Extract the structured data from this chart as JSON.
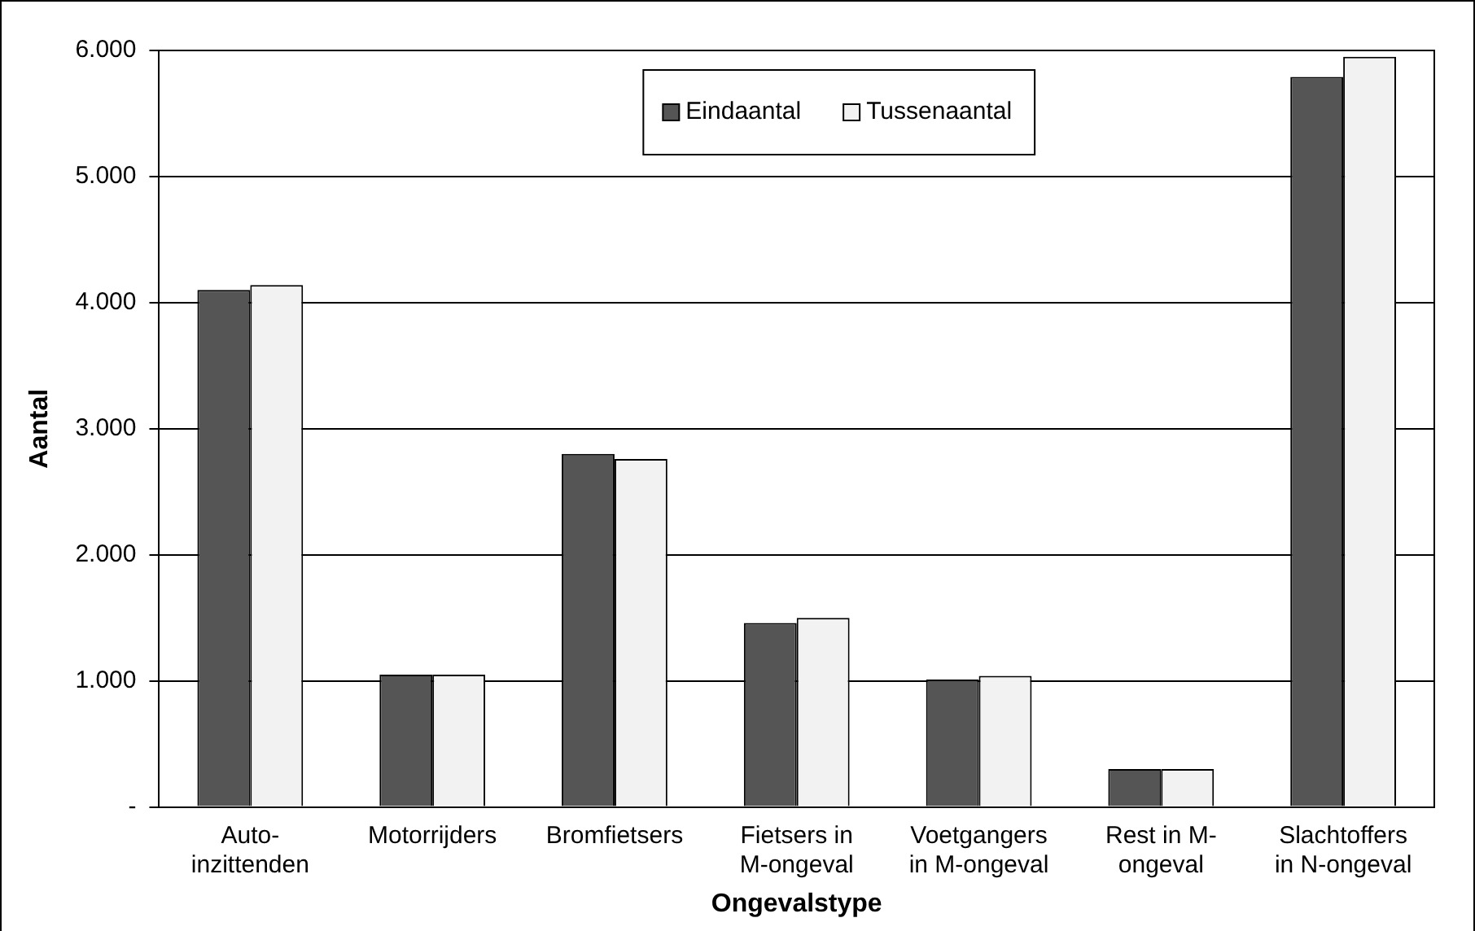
{
  "chart_data": {
    "type": "bar",
    "xlabel": "Ongevalstype",
    "ylabel": "Aantal",
    "categories": [
      "Auto-\ninzittenden",
      "Motorrijders",
      "Bromfietsers",
      "Fietsers in\nM-ongeval",
      "Voetgangers\nin M-ongeval",
      "Rest in M-\nongeval",
      "Slachtoffers\nin N-ongeval"
    ],
    "series": [
      {
        "name": "Eindaantal",
        "color": "#555555",
        "values": [
          4100,
          1050,
          2800,
          1460,
          1010,
          300,
          5790
        ]
      },
      {
        "name": "Tussenaantal",
        "color": "#f2f2f2",
        "values": [
          4140,
          1050,
          2760,
          1500,
          1040,
          300,
          5950
        ]
      }
    ],
    "ylim": [
      0,
      6000
    ],
    "yticks": [
      {
        "value": 0,
        "label": "-"
      },
      {
        "value": 1000,
        "label": "1.000"
      },
      {
        "value": 2000,
        "label": "2.000"
      },
      {
        "value": 3000,
        "label": "3.000"
      },
      {
        "value": 4000,
        "label": "4.000"
      },
      {
        "value": 5000,
        "label": "5.000"
      },
      {
        "value": 6000,
        "label": "6.000"
      }
    ],
    "grid": "y",
    "legend": "top"
  }
}
